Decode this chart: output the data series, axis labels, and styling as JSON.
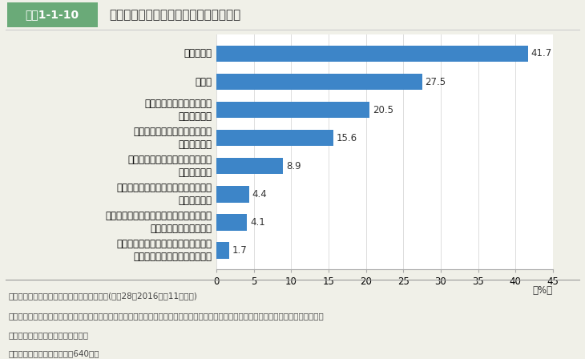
{
  "title": "一人で食事を食べることについての意識",
  "title_tag": "図表1-1-10",
  "categories": [
    "一人で食べたくないが、食事の時間や\n場所が合わないため、仕方ない",
    "一人で食べたくないが、一緒に食べる人が\nいないため、仕方がない",
    "一人で食べることが都合がいいため、\n気にならない",
    "自分の時間を大切にしたいため、\n気にならない",
    "一緒に食べる習慣がないため、\n気にならない",
    "食事中に作業をするため、\n気にならない",
    "その他",
    "わからない"
  ],
  "values": [
    41.7,
    27.5,
    20.5,
    15.6,
    8.9,
    4.4,
    4.1,
    1.7
  ],
  "bar_color": "#3d85c8",
  "xlim": [
    0,
    45
  ],
  "xticks": [
    0,
    5,
    10,
    15,
    20,
    25,
    30,
    35,
    40,
    45
  ],
  "background_color": "#f0f0e8",
  "plot_bg_color": "#ffffff",
  "footnote_line1": "資料：農林水産省「食育に関する意識調査」(平成28（2016）年11月実施)",
  "footnote_line2": "　注：「１日の全ての食事を一人で食べる」頻度について、「週に１日程度ある」、「週に２～３日ある」、「週に４～５日ある」、「ほと",
  "footnote_line3": "　　　んど毎日」と答えた人が対象",
  "footnote_line4": "　　　複数回答（該当者数：640人）",
  "tag_bg_color": "#6aaa78",
  "tag_text_color": "#ffffff",
  "title_fontsize": 11,
  "tag_fontsize": 10,
  "bar_label_fontsize": 8.5,
  "tick_fontsize": 8.5,
  "ylabel_fontsize": 8.5,
  "footnote_fontsize": 7.5
}
